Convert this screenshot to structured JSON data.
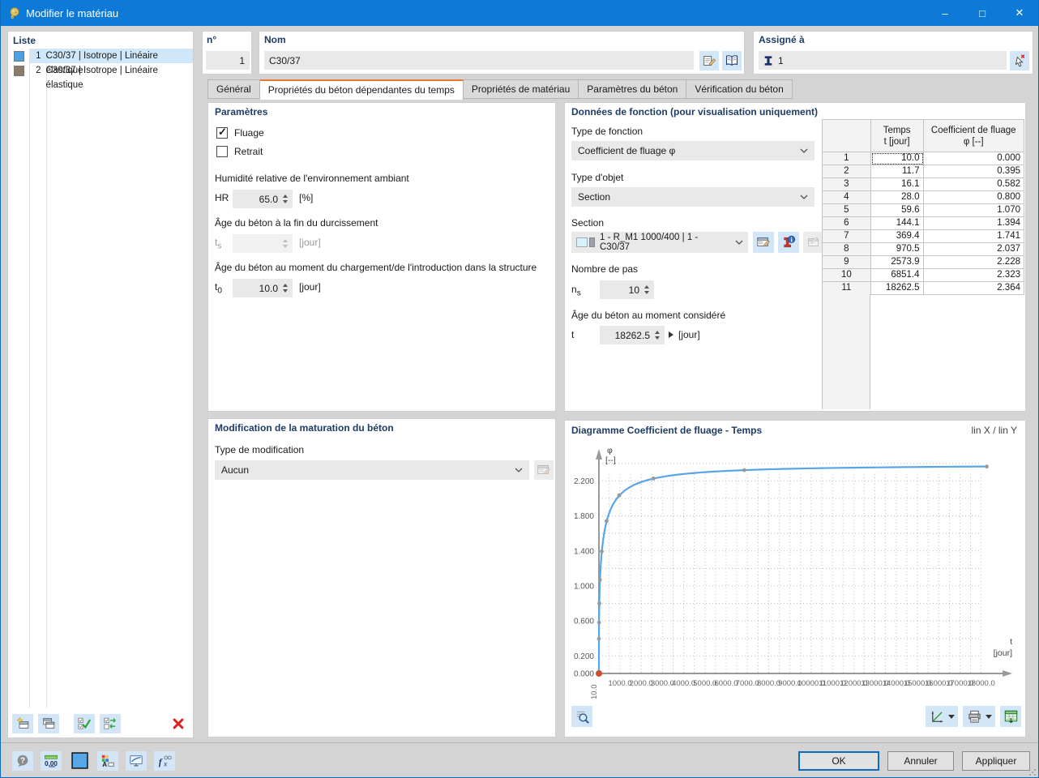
{
  "window": {
    "title": "Modifier le matériau"
  },
  "liste": {
    "header": "Liste",
    "items": [
      {
        "num": "1",
        "label": "C30/37 | Isotrope | Linéaire élastique",
        "color": "#4da0e0",
        "selected": true
      },
      {
        "num": "2",
        "label": "C30/37 | Isotrope | Linéaire élastique",
        "color": "#8b7c69",
        "selected": false
      }
    ],
    "toolbar_icons": [
      "new-material-icon",
      "copy-material-icon",
      "select-check-icon",
      "invert-selection-icon"
    ],
    "delete_icon": "delete-icon"
  },
  "header": {
    "no_label": "n°",
    "no_value": "1",
    "name_label": "Nom",
    "name_value": "C30/37",
    "assigned_label": "Assigné à",
    "assigned_value": "1"
  },
  "tabs": [
    {
      "label": "Général",
      "active": false
    },
    {
      "label": "Propriétés du béton dépendantes du temps",
      "active": true
    },
    {
      "label": "Propriétés de matériau",
      "active": false
    },
    {
      "label": "Paramètres du béton",
      "active": false
    },
    {
      "label": "Vérification du béton",
      "active": false
    }
  ],
  "parametres": {
    "title": "Paramètres",
    "fluage_label": "Fluage",
    "fluage_checked": true,
    "retrait_label": "Retrait",
    "retrait_checked": false,
    "humidite_label": "Humidité relative de l'environnement ambiant",
    "hr_symbol": "HR",
    "hr_value": "65.0",
    "hr_unit": "[%]",
    "age_fin_label": "Âge du béton à la fin du durcissement",
    "ts_symbol": "t",
    "ts_sub": "s",
    "ts_value": "",
    "ts_unit": "[jour]",
    "age_chargement_label": "Âge du béton au moment du chargement/de l'introduction dans la structure",
    "t0_symbol": "t",
    "t0_sub": "0",
    "t0_value": "10.0",
    "t0_unit": "[jour]"
  },
  "maturation": {
    "title": "Modification de la maturation du béton",
    "type_label": "Type de modification",
    "type_value": "Aucun"
  },
  "fonction": {
    "title": "Données de fonction (pour visualisation uniquement)",
    "type_fonction_label": "Type de fonction",
    "type_fonction_value": "Coefficient de fluage φ",
    "type_objet_label": "Type d'objet",
    "type_objet_value": "Section",
    "section_label": "Section",
    "section_value": "1 - R_M1 1000/400 | 1 - C30/37",
    "section_swatch_colors": [
      "#d8f4f8",
      "#9aa0a6"
    ],
    "section_buttons": [
      "edit-section-icon",
      "section-info-icon",
      "new-section-icon"
    ],
    "pas_label": "Nombre de pas",
    "ns_symbol": "n",
    "ns_sub": "s",
    "ns_value": "10",
    "age_considere_label": "Âge du béton au moment considéré",
    "t_symbol": "t",
    "t_value": "18262.5",
    "t_unit": "[jour]"
  },
  "table": {
    "headers": {
      "col_t_line1": "Temps",
      "col_t_line2": "t [jour]",
      "col_phi_line1": "Coefficient de fluage",
      "col_phi_line2": "φ [--]"
    },
    "rows": [
      [
        "1",
        "10.0",
        "0.000"
      ],
      [
        "2",
        "11.7",
        "0.395"
      ],
      [
        "3",
        "16.1",
        "0.582"
      ],
      [
        "4",
        "28.0",
        "0.800"
      ],
      [
        "5",
        "59.6",
        "1.070"
      ],
      [
        "6",
        "144.1",
        "1.394"
      ],
      [
        "7",
        "369.4",
        "1.741"
      ],
      [
        "8",
        "970.5",
        "2.037"
      ],
      [
        "9",
        "2573.9",
        "2.228"
      ],
      [
        "10",
        "6851.4",
        "2.323"
      ],
      [
        "11",
        "18262.5",
        "2.364"
      ]
    ]
  },
  "chart": {
    "title": "Diagramme Coefficient de fluage - Temps",
    "scale_label": "lin X / lin Y",
    "toolbar_left": [
      "chart-zoom-icon"
    ],
    "toolbar_right": [
      "axes-settings-icon",
      "printer-icon",
      "excel-export-icon"
    ]
  },
  "chart_data": {
    "type": "line",
    "title": "Diagramme Coefficient de fluage - Temps",
    "x_name": "t",
    "x_unit": "[jour]",
    "y_name": "φ",
    "y_unit": "[--]",
    "x": [
      10.0,
      11.7,
      16.1,
      28.0,
      59.6,
      144.1,
      369.4,
      970.5,
      2573.9,
      6851.4,
      18262.5
    ],
    "y": [
      0.0,
      0.395,
      0.582,
      0.8,
      1.07,
      1.394,
      1.741,
      2.037,
      2.228,
      2.323,
      2.364
    ],
    "xlim": [
      10,
      18500
    ],
    "ylim": [
      0,
      2.5
    ],
    "x_ticks": [
      1000,
      2000,
      3000,
      4000,
      5000,
      6000,
      7000,
      8000,
      9000,
      10000,
      11000,
      12000,
      13000,
      14000,
      15000,
      16000,
      17000,
      18000
    ],
    "x_origin_label": "10.0",
    "y_tick_values": [
      0.0,
      0.2,
      0.6,
      1.0,
      1.4,
      1.8,
      2.2
    ],
    "y_grid_step": 0.2,
    "x_grid_step": 500,
    "grid": "dotted",
    "line_color": "#58a6e8",
    "point_color": "#9a9a9a",
    "origin_color": "#cf5030"
  },
  "footer": {
    "toolbar_icons": [
      "help-icon",
      "decimal-places-icon",
      "material-color-swatch",
      "display-settings-icon",
      "monitor-icon",
      "function-fx-icon"
    ],
    "ok": "OK",
    "cancel": "Annuler",
    "apply": "Appliquer"
  },
  "colors": {
    "titlebar": "#0c7ad6",
    "accent": "#0c6cbd",
    "selection": "#cfe7f9",
    "tab_active_top": "#e87a30"
  }
}
